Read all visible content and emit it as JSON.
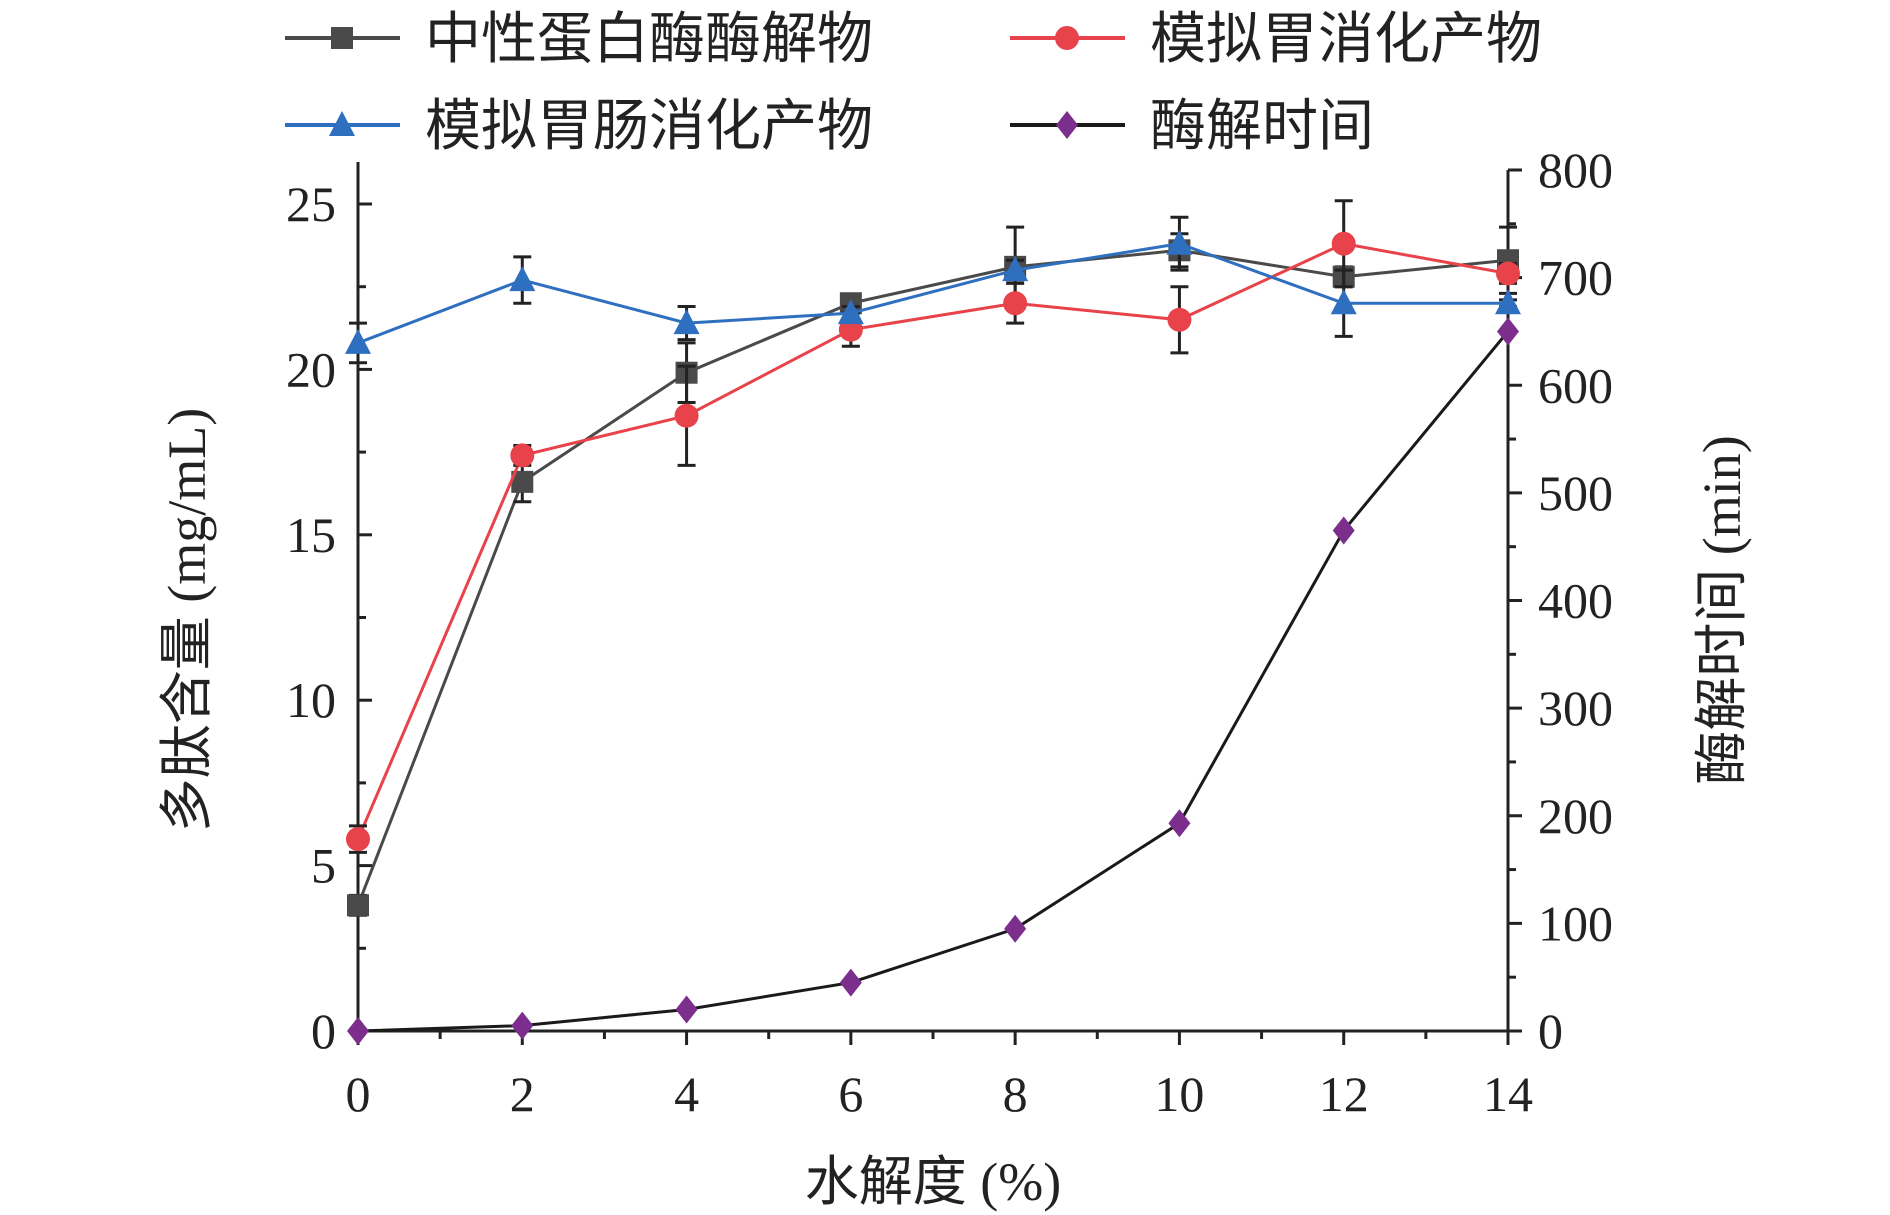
{
  "chart_data": {
    "type": "line",
    "xlabel": "水解度 (%)",
    "ylabel_left": "多肽含量 (mg/mL)",
    "ylabel_right": "酶解时间 (min)",
    "xlim": [
      0,
      14
    ],
    "ylim_left": [
      0,
      26
    ],
    "ylim_right": [
      0,
      800
    ],
    "x_ticks": [
      0,
      2,
      4,
      6,
      8,
      10,
      12,
      14
    ],
    "y_left_ticks": [
      0,
      5,
      10,
      15,
      20,
      25
    ],
    "y_right_ticks": [
      0,
      100,
      200,
      300,
      400,
      500,
      600,
      700,
      800
    ],
    "grid": false,
    "legend_position": "top",
    "x": [
      0,
      2,
      4,
      6,
      8,
      10,
      12,
      14
    ],
    "series": [
      {
        "name": "中性蛋白酶酶解物",
        "axis": "left",
        "color": "#4a4a4a",
        "marker": "square",
        "values": [
          3.8,
          16.6,
          19.9,
          22.0,
          23.1,
          23.6,
          22.8,
          23.3
        ],
        "errors": [
          0.3,
          0.6,
          0.9,
          0.2,
          1.2,
          0.5,
          0.3,
          1.0
        ]
      },
      {
        "name": "模拟胃消化产物",
        "axis": "left",
        "color": "#e8434a",
        "marker": "circle",
        "values": [
          5.8,
          17.4,
          18.6,
          21.2,
          22.0,
          21.5,
          23.8,
          22.9
        ],
        "errors": [
          0.4,
          0.3,
          1.5,
          0.5,
          0.6,
          1.0,
          1.3,
          0.3
        ]
      },
      {
        "name": "模拟胃肠消化产物",
        "axis": "left",
        "color": "#2f6fbf",
        "marker": "triangle",
        "values": [
          20.8,
          22.7,
          21.4,
          21.7,
          23.0,
          23.8,
          22.0,
          22.0
        ],
        "errors": [
          0.6,
          0.7,
          0.5,
          0.2,
          0.3,
          0.8,
          1.0,
          0.1
        ]
      },
      {
        "name": "酶解时间",
        "axis": "right",
        "color": "#7b2e8c",
        "line_color": "#1a1a1a",
        "marker": "diamond",
        "values": [
          0,
          5,
          20,
          45,
          95,
          193,
          465,
          650
        ],
        "errors": null
      }
    ]
  }
}
